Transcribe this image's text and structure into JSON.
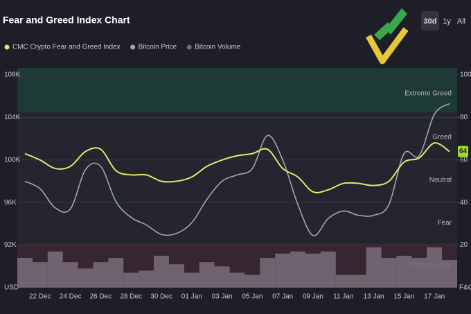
{
  "chart_data": {
    "type": "line",
    "title": "Fear and Greed Index Chart",
    "buttons": [
      "30d",
      "1y",
      "All"
    ],
    "active_button": "30d",
    "categories": [
      null,
      "22 Dec",
      null,
      "24 Dec",
      null,
      "26 Dec",
      null,
      "28 Dec",
      null,
      "30 Dec",
      null,
      "01 Jan",
      null,
      "03 Jan",
      null,
      "05 Jan",
      null,
      "07 Jan",
      null,
      "09 Jan",
      null,
      "11 Jan",
      null,
      "13 Jan",
      null,
      "15 Jan",
      null,
      "17 Jan",
      null
    ],
    "series": [
      {
        "name": "CMC Crypto Fear and Greed Index",
        "color": "#e4e86a",
        "axis": "y2",
        "type": "line",
        "values": [
          63,
          60,
          56,
          57,
          64,
          65,
          55,
          53,
          53,
          50,
          50,
          52,
          57,
          60,
          62,
          63,
          65,
          56,
          52,
          45,
          46,
          49,
          49,
          48,
          50,
          59,
          61,
          68,
          64
        ]
      },
      {
        "name": "Bitcoin Price",
        "color": "#a4a6b4",
        "axis": "y",
        "type": "line",
        "values": [
          98000,
          97300,
          95500,
          95400,
          99100,
          99400,
          96100,
          94600,
          93900,
          93000,
          93100,
          94100,
          96300,
          98000,
          98600,
          99200,
          102300,
          100000,
          95800,
          92900,
          94500,
          95200,
          94800,
          94800,
          95800,
          100600,
          100400,
          104300,
          105300
        ]
      },
      {
        "name": "Bitcoin Volume",
        "color": "#756a78",
        "axis": "y2",
        "type": "bar",
        "values": [
          14,
          12,
          17,
          12,
          9,
          12,
          14,
          7,
          8,
          15,
          11,
          7,
          12,
          10,
          7,
          6,
          14,
          16,
          17,
          16,
          17,
          6,
          6,
          19,
          14,
          15,
          14,
          19,
          13
        ]
      }
    ],
    "ylim": [
      88000,
      108000
    ],
    "yticks": [
      {
        "value": 92000,
        "label": "92K"
      },
      {
        "value": 96000,
        "label": "96K"
      },
      {
        "value": 100000,
        "label": "100K"
      },
      {
        "value": 104000,
        "label": "104K"
      },
      {
        "value": 108000,
        "label": "108K"
      }
    ],
    "y2lim": [
      0,
      100
    ],
    "y2ticks": [
      20,
      40,
      60,
      80,
      100
    ],
    "ylabel": "USD",
    "y2label": "F&G",
    "zone_labels": [
      "Extreme Greed",
      "Greed",
      "Neutral",
      "Fear",
      "Extreme Fear"
    ],
    "grid": true
  }
}
